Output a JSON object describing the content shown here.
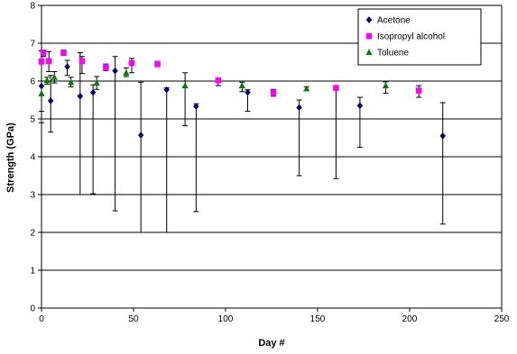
{
  "chart_data": {
    "type": "scatter",
    "title": "",
    "xlabel": "Day #",
    "ylabel": "Strength (GPa)",
    "xlim": [
      0,
      250
    ],
    "ylim": [
      0,
      8
    ],
    "xticks": [
      "0",
      "50",
      "100",
      "150",
      "200",
      "250"
    ],
    "yticks": [
      "0",
      "1",
      "2",
      "3",
      "4",
      "5",
      "6",
      "7",
      "8"
    ],
    "grid": "horizontal",
    "legend_position": "top-right",
    "series": [
      {
        "name": "Acetone",
        "color": "#000080",
        "marker": "diamond",
        "points": [
          {
            "x": 0,
            "y": 5.87,
            "lo": 4.9,
            "hi": 6.8
          },
          {
            "x": 5,
            "y": 5.48,
            "lo": 4.65,
            "hi": 6.15
          },
          {
            "x": 14,
            "y": 6.38,
            "lo": 6.15,
            "hi": 6.55
          },
          {
            "x": 21,
            "y": 5.6,
            "lo": 3.0,
            "hi": 6.75
          },
          {
            "x": 28,
            "y": 5.7,
            "lo": 3.02,
            "hi": 5.9
          },
          {
            "x": 40,
            "y": 6.27,
            "lo": 2.57,
            "hi": 6.65
          },
          {
            "x": 54,
            "y": 4.57,
            "lo": 2.0,
            "hi": 5.97
          },
          {
            "x": 68,
            "y": 5.77,
            "lo": 2.0,
            "hi": 5.82
          },
          {
            "x": 84,
            "y": 5.33,
            "lo": 2.55,
            "hi": 5.4
          },
          {
            "x": 112,
            "y": 5.7,
            "lo": 5.2,
            "hi": 5.77
          },
          {
            "x": 140,
            "y": 5.3,
            "lo": 3.5,
            "hi": 5.5
          },
          {
            "x": 173,
            "y": 5.35,
            "lo": 4.25,
            "hi": 5.57
          },
          {
            "x": 218,
            "y": 4.55,
            "lo": 2.22,
            "hi": 5.43
          }
        ]
      },
      {
        "name": "Isopropyl alcohol",
        "color": "#FF00FF",
        "marker": "square",
        "points": [
          {
            "x": 0,
            "y": 6.52,
            "lo": 5.2,
            "hi": 6.8
          },
          {
            "x": 1,
            "y": 6.75,
            "lo": 6.65,
            "hi": 6.82
          },
          {
            "x": 4,
            "y": 6.53,
            "lo": 6.25,
            "hi": 6.78
          },
          {
            "x": 12,
            "y": 6.75,
            "lo": 6.68,
            "hi": 6.82
          },
          {
            "x": 22,
            "y": 6.53,
            "lo": 6.2,
            "hi": 6.65
          },
          {
            "x": 35,
            "y": 6.37,
            "lo": 6.28,
            "hi": 6.45
          },
          {
            "x": 49,
            "y": 6.48,
            "lo": 6.22,
            "hi": 6.6
          },
          {
            "x": 63,
            "y": 6.45,
            "lo": 6.38,
            "hi": 6.52
          },
          {
            "x": 96,
            "y": 6.02,
            "lo": 5.88,
            "hi": 6.08
          },
          {
            "x": 126,
            "y": 5.7,
            "lo": 5.6,
            "hi": 5.78
          },
          {
            "x": 160,
            "y": 5.82,
            "lo": 3.42,
            "hi": 5.85
          },
          {
            "x": 205,
            "y": 5.75,
            "lo": 5.57,
            "hi": 5.88
          }
        ]
      },
      {
        "name": "Toluene",
        "color": "#008000",
        "marker": "triangle",
        "points": [
          {
            "x": 0,
            "y": 5.67,
            "lo": 5.0,
            "hi": 6.45
          },
          {
            "x": 3,
            "y": 6.02,
            "lo": 5.92,
            "hi": 6.1
          },
          {
            "x": 7,
            "y": 6.1,
            "lo": 5.95,
            "hi": 6.25
          },
          {
            "x": 16,
            "y": 5.97,
            "lo": 5.85,
            "hi": 6.1
          },
          {
            "x": 30,
            "y": 5.95,
            "lo": 5.78,
            "hi": 6.12
          },
          {
            "x": 46,
            "y": 6.22,
            "lo": 6.12,
            "hi": 6.35
          },
          {
            "x": 78,
            "y": 5.88,
            "lo": 4.82,
            "hi": 6.22
          },
          {
            "x": 109,
            "y": 5.88,
            "lo": 5.72,
            "hi": 5.97
          },
          {
            "x": 144,
            "y": 5.8,
            "lo": 5.75,
            "hi": 5.85
          },
          {
            "x": 187,
            "y": 5.88,
            "lo": 5.68,
            "hi": 5.98
          }
        ]
      }
    ]
  }
}
